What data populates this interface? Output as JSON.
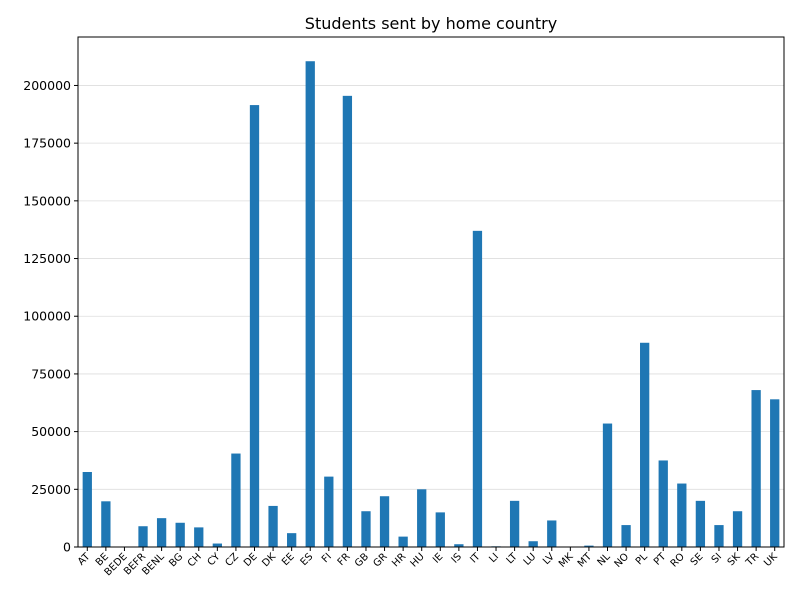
{
  "chart_data": {
    "type": "bar",
    "title": "Students sent by home country",
    "xlabel": "",
    "ylabel": "",
    "ylim": [
      0,
      221000
    ],
    "yticks": [
      0,
      25000,
      50000,
      75000,
      100000,
      125000,
      150000,
      175000,
      200000
    ],
    "grid": "y",
    "bar_color": "#1f77b4",
    "categories": [
      "AT",
      "BE",
      "BEDE",
      "BEFR",
      "BENL",
      "BG",
      "CH",
      "CY",
      "CZ",
      "DE",
      "DK",
      "EE",
      "ES",
      "FI",
      "FR",
      "GB",
      "GR",
      "HR",
      "HU",
      "IE",
      "IS",
      "IT",
      "LI",
      "LT",
      "LU",
      "LV",
      "MK",
      "MT",
      "NL",
      "NO",
      "PL",
      "PT",
      "RO",
      "SE",
      "SI",
      "SK",
      "TR",
      "UK"
    ],
    "values": [
      32500,
      19800,
      100,
      9000,
      12500,
      10500,
      8500,
      1500,
      40500,
      191500,
      17800,
      6000,
      210500,
      30500,
      195500,
      15500,
      22000,
      4500,
      25000,
      15000,
      1200,
      137000,
      300,
      20000,
      2500,
      11500,
      100,
      600,
      53500,
      9500,
      88500,
      37500,
      27500,
      20000,
      9500,
      15500,
      68000,
      64000
    ]
  }
}
